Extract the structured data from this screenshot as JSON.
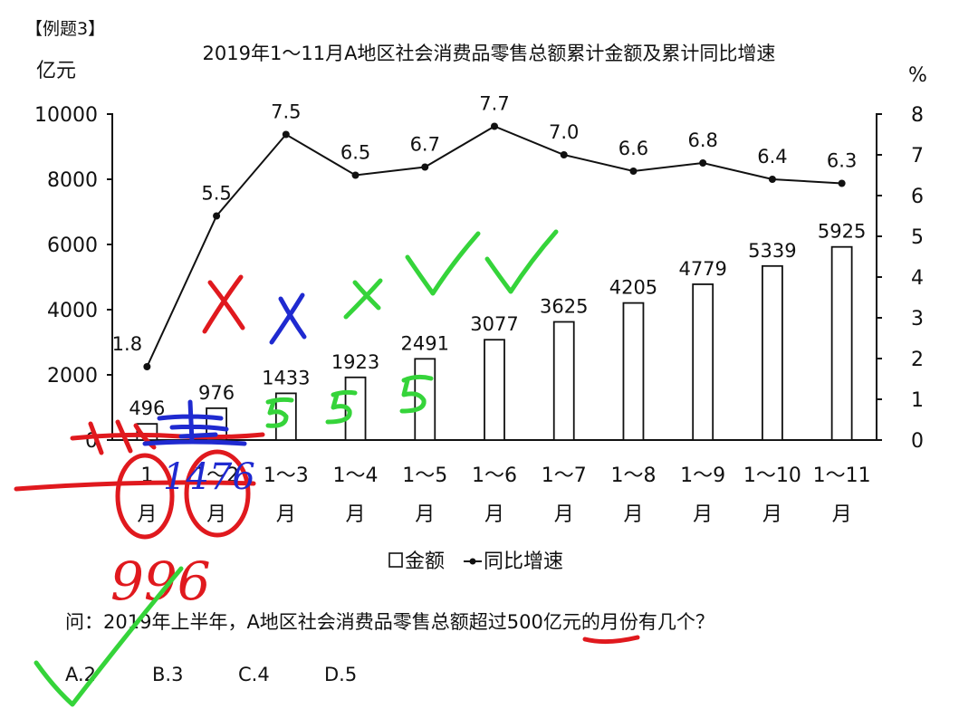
{
  "header": {
    "example_label": "【例题3】"
  },
  "chart_data": {
    "type": "bar",
    "title": "2019年1～11月A地区社会消费品零售总额累计金额及累计同比增速",
    "ylabel": "亿元",
    "y2label": "%",
    "ylim": [
      0,
      10000
    ],
    "y_ticks": [
      "0",
      "2000",
      "4000",
      "6000",
      "8000",
      "10000"
    ],
    "y2lim": [
      0,
      8
    ],
    "y2_ticks": [
      "0",
      "1",
      "2",
      "3",
      "4",
      "5",
      "6",
      "7",
      "8"
    ],
    "categories": [
      {
        "top": "1",
        "bottom": "月"
      },
      {
        "top": "1～2",
        "bottom": "月"
      },
      {
        "top": "1～3",
        "bottom": "月"
      },
      {
        "top": "1～4",
        "bottom": "月"
      },
      {
        "top": "1～5",
        "bottom": "月"
      },
      {
        "top": "1～6",
        "bottom": "月"
      },
      {
        "top": "1～7",
        "bottom": "月"
      },
      {
        "top": "1～8",
        "bottom": "月"
      },
      {
        "top": "1～9",
        "bottom": "月"
      },
      {
        "top": "1～10",
        "bottom": "月"
      },
      {
        "top": "1～11",
        "bottom": "月"
      }
    ],
    "series": [
      {
        "name": "金额",
        "type": "bar",
        "axis": "left",
        "values": [
          496,
          976,
          1433,
          1923,
          2491,
          3077,
          3625,
          4205,
          4779,
          5339,
          5925
        ]
      },
      {
        "name": "同比增速",
        "type": "line",
        "axis": "right",
        "values": [
          1.8,
          5.5,
          7.5,
          6.5,
          6.7,
          7.7,
          7.0,
          6.6,
          6.8,
          6.4,
          6.3
        ]
      }
    ],
    "legend": {
      "position": "bottom",
      "labels": [
        "金额",
        "同比增速"
      ]
    }
  },
  "question": {
    "text": "问：2019年上半年，A地区社会消费品零售总额超过500亿元的月份有几个？",
    "options": [
      "A.2",
      "B.3",
      "C.4",
      "D.5"
    ]
  },
  "annotations": {
    "handwritten": [
      "996",
      "1476"
    ],
    "colors": {
      "red": "#e0191e",
      "blue": "#1f2ad0",
      "green": "#35d43a"
    }
  }
}
